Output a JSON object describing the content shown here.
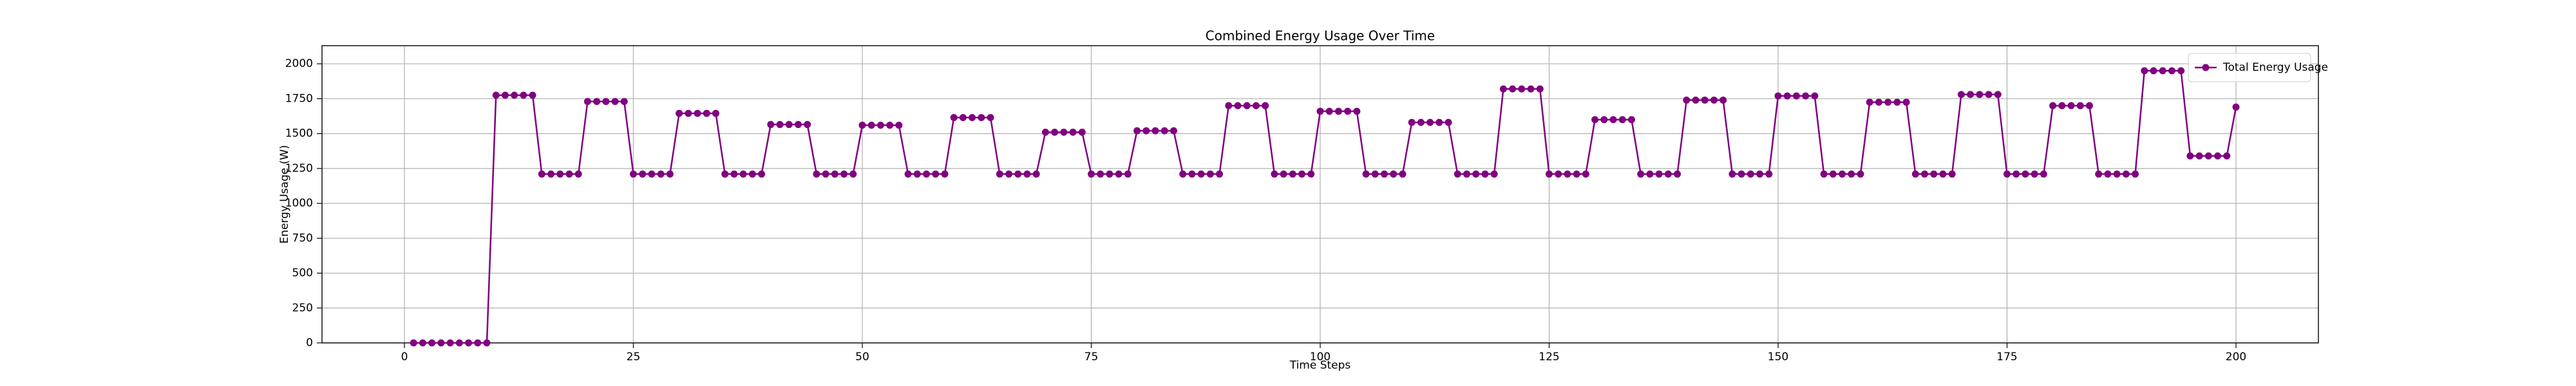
{
  "chart_data": {
    "type": "line",
    "title": "Combined Energy Usage Over Time",
    "x_label": "Time Steps",
    "y_label": "Energy Usage (W)",
    "x": [
      1,
      2,
      3,
      4,
      5,
      6,
      7,
      8,
      9,
      10,
      11,
      12,
      13,
      14,
      15,
      16,
      17,
      18,
      19,
      20,
      21,
      22,
      23,
      24,
      25,
      26,
      27,
      28,
      29,
      30,
      31,
      32,
      33,
      34,
      35,
      36,
      37,
      38,
      39,
      40,
      41,
      42,
      43,
      44,
      45,
      46,
      47,
      48,
      49,
      50,
      51,
      52,
      53,
      54,
      55,
      56,
      57,
      58,
      59,
      60,
      61,
      62,
      63,
      64,
      65,
      66,
      67,
      68,
      69,
      70,
      71,
      72,
      73,
      74,
      75,
      76,
      77,
      78,
      79,
      80,
      81,
      82,
      83,
      84,
      85,
      86,
      87,
      88,
      89,
      90,
      91,
      92,
      93,
      94,
      95,
      96,
      97,
      98,
      99,
      100,
      101,
      102,
      103,
      104,
      105,
      106,
      107,
      108,
      109,
      110,
      111,
      112,
      113,
      114,
      115,
      116,
      117,
      118,
      119,
      120,
      121,
      122,
      123,
      124,
      125,
      126,
      127,
      128,
      129,
      130,
      131,
      132,
      133,
      134,
      135,
      136,
      137,
      138,
      139,
      140,
      141,
      142,
      143,
      144,
      145,
      146,
      147,
      148,
      149,
      150,
      151,
      152,
      153,
      154,
      155,
      156,
      157,
      158,
      159,
      160,
      161,
      162,
      163,
      164,
      165,
      166,
      167,
      168,
      169,
      170,
      171,
      172,
      173,
      174,
      175,
      176,
      177,
      178,
      179,
      180,
      181,
      182,
      183,
      184,
      185,
      186,
      187,
      188,
      189,
      190,
      191,
      192,
      193,
      194,
      195,
      196,
      197,
      198,
      199,
      200
    ],
    "series": [
      {
        "name": "Total Energy Usage",
        "color": "#800080",
        "values": [
          0,
          0,
          0,
          0,
          0,
          0,
          0,
          0,
          0,
          1775,
          1775,
          1775,
          1775,
          1775,
          1210,
          1210,
          1210,
          1210,
          1210,
          1730,
          1730,
          1730,
          1730,
          1730,
          1210,
          1210,
          1210,
          1210,
          1210,
          1645,
          1645,
          1645,
          1645,
          1645,
          1210,
          1210,
          1210,
          1210,
          1210,
          1565,
          1565,
          1565,
          1565,
          1565,
          1210,
          1210,
          1210,
          1210,
          1210,
          1560,
          1560,
          1560,
          1560,
          1560,
          1210,
          1210,
          1210,
          1210,
          1210,
          1615,
          1615,
          1615,
          1615,
          1615,
          1210,
          1210,
          1210,
          1210,
          1210,
          1510,
          1510,
          1510,
          1510,
          1510,
          1210,
          1210,
          1210,
          1210,
          1210,
          1520,
          1520,
          1520,
          1520,
          1520,
          1210,
          1210,
          1210,
          1210,
          1210,
          1700,
          1700,
          1700,
          1700,
          1700,
          1210,
          1210,
          1210,
          1210,
          1210,
          1660,
          1660,
          1660,
          1660,
          1660,
          1210,
          1210,
          1210,
          1210,
          1210,
          1580,
          1580,
          1580,
          1580,
          1580,
          1210,
          1210,
          1210,
          1210,
          1210,
          1820,
          1820,
          1820,
          1820,
          1820,
          1210,
          1210,
          1210,
          1210,
          1210,
          1600,
          1600,
          1600,
          1600,
          1600,
          1210,
          1210,
          1210,
          1210,
          1210,
          1740,
          1740,
          1740,
          1740,
          1740,
          1210,
          1210,
          1210,
          1210,
          1210,
          1770,
          1770,
          1770,
          1770,
          1770,
          1210,
          1210,
          1210,
          1210,
          1210,
          1725,
          1725,
          1725,
          1725,
          1725,
          1210,
          1210,
          1210,
          1210,
          1210,
          1780,
          1780,
          1780,
          1780,
          1780,
          1210,
          1210,
          1210,
          1210,
          1210,
          1700,
          1700,
          1700,
          1700,
          1700,
          1210,
          1210,
          1210,
          1210,
          1210,
          1950,
          1950,
          1950,
          1950,
          1950,
          1340,
          1340,
          1340,
          1340,
          1340,
          1690
        ]
      }
    ],
    "xlim": [
      -9,
      209
    ],
    "ylim": [
      0,
      2130
    ],
    "xticks": [
      0,
      25,
      50,
      75,
      100,
      125,
      150,
      175,
      200
    ],
    "yticks": [
      0,
      250,
      500,
      750,
      1000,
      1250,
      1500,
      1750,
      2000
    ],
    "grid": true,
    "legend": "upper right"
  }
}
